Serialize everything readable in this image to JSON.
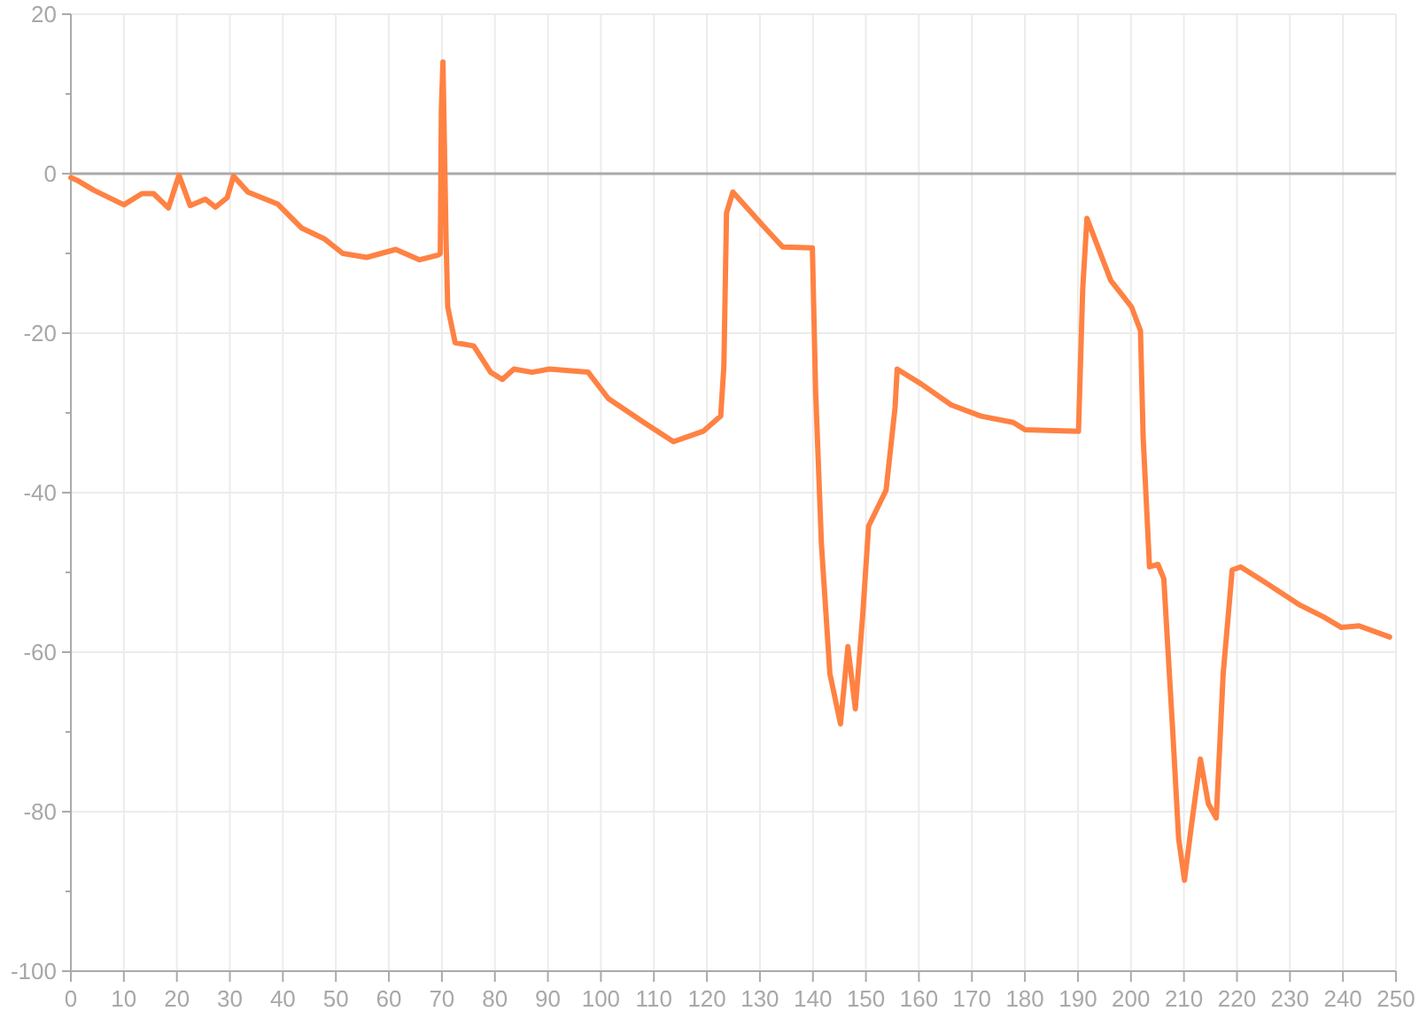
{
  "chart_data": {
    "type": "line",
    "xlim": [
      0,
      250
    ],
    "ylim": [
      -100,
      20
    ],
    "xticks": [
      0,
      10,
      20,
      30,
      40,
      50,
      60,
      70,
      80,
      90,
      100,
      110,
      120,
      130,
      140,
      150,
      160,
      170,
      180,
      190,
      200,
      210,
      220,
      230,
      240,
      250
    ],
    "yticks": [
      -100,
      {
        "value": -90,
        "label": null
      },
      -80,
      {
        "value": -70,
        "label": null
      },
      -60,
      {
        "value": -50,
        "label": null
      },
      -40,
      {
        "value": -30,
        "label": null
      },
      -20,
      {
        "value": -10,
        "label": null
      },
      0,
      {
        "value": 10,
        "label": null
      },
      20
    ],
    "grid": true,
    "marker": "none",
    "line_style": "solid",
    "ref_lines": [
      {
        "axis": "y",
        "value": 0,
        "color": "#aaaaaa"
      }
    ],
    "series": [
      {
        "color": "#ff8243",
        "x": [
          0,
          1.1,
          4.4,
          10,
          13.4,
          15.6,
          18.4,
          20.4,
          22.5,
          25.4,
          27.3,
          29.5,
          30.7,
          33.4,
          39,
          43.5,
          47.9,
          51.3,
          55.8,
          61.3,
          65.8,
          69.3,
          69.7,
          69.9,
          70.2,
          70.8,
          71.1,
          72.5,
          76,
          79.2,
          81.4,
          83.6,
          87,
          90.3,
          97.6,
          101.4,
          108.1,
          113.7,
          119.3,
          122.6,
          123.2,
          123.7,
          124.9,
          130.4,
          134.3,
          139.9,
          140.5,
          141.6,
          143.2,
          145.2,
          146.6,
          148,
          149.4,
          150.5,
          153.8,
          155.5,
          155.9,
          160.5,
          166.1,
          171.7,
          177.8,
          180,
          190.1,
          190.4,
          190.9,
          191.7,
          196.2,
          200.1,
          201.8,
          202.3,
          203.5,
          205.1,
          206.2,
          207.9,
          209,
          210.1,
          211.3,
          213.1,
          214.6,
          216.1,
          217.4,
          219.1,
          220.7,
          225.2,
          231.9,
          236.4,
          239.7,
          243,
          248.8
        ],
        "values": [
          -0.5,
          -0.8,
          -2.1,
          -3.9,
          -2.5,
          -2.5,
          -4.3,
          -0.2,
          -4,
          -3.2,
          -4.2,
          -3,
          -0.3,
          -2.3,
          -3.8,
          -6.8,
          -8.2,
          -10,
          -10.5,
          -9.5,
          -10.8,
          -10.2,
          -10,
          8,
          14,
          -8.6,
          -16.7,
          -21.2,
          -21.6,
          -24.9,
          -25.8,
          -24.5,
          -24.9,
          -24.5,
          -24.9,
          -28.2,
          -31.2,
          -33.6,
          -32.3,
          -30.4,
          -24.2,
          -4.9,
          -2.3,
          -6.4,
          -9.2,
          -9.3,
          -27.1,
          -46.4,
          -62.7,
          -69,
          -59.3,
          -67.1,
          -55.3,
          -44.2,
          -39.7,
          -29.3,
          -24.5,
          -26.4,
          -29,
          -30.4,
          -31.2,
          -32.1,
          -32.3,
          -25.6,
          -14.5,
          -5.6,
          -13.4,
          -16.7,
          -19.7,
          -33,
          -49.3,
          -49,
          -50.8,
          -70.1,
          -83.4,
          -88.6,
          -82.3,
          -73.4,
          -79,
          -80.8,
          -62.7,
          -49.7,
          -49.3,
          -51.2,
          -54.1,
          -55.6,
          -56.9,
          -56.7,
          -58.1
        ]
      }
    ]
  }
}
